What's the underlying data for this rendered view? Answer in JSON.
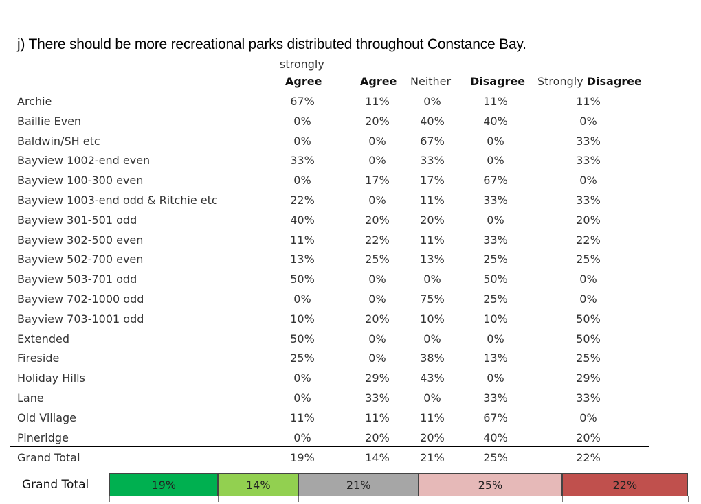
{
  "title": "j) There should be more recreational parks distributed throughout Constance Bay.",
  "headers": {
    "col1_line1": "strongly",
    "col1_line2": "Agree",
    "col2": "Agree",
    "col3": "Neither",
    "col4": "Disagree",
    "col5_prefix": "Strongly",
    "col5_bold": "Disagree"
  },
  "chart_data": {
    "type": "table",
    "columns": [
      "strongly Agree",
      "Agree",
      "Neither",
      "Disagree",
      "Strongly Disagree"
    ],
    "rows": [
      {
        "label": "Archie",
        "values": [
          "67%",
          "11%",
          "0%",
          "11%",
          "11%"
        ]
      },
      {
        "label": "Baillie Even",
        "values": [
          "0%",
          "20%",
          "40%",
          "40%",
          "0%"
        ]
      },
      {
        "label": "Baldwin/SH etc",
        "values": [
          "0%",
          "0%",
          "67%",
          "0%",
          "33%"
        ]
      },
      {
        "label": "Bayview 1002-end even",
        "values": [
          "33%",
          "0%",
          "33%",
          "0%",
          "33%"
        ]
      },
      {
        "label": "Bayview 100-300 even",
        "values": [
          "0%",
          "17%",
          "17%",
          "67%",
          "0%"
        ]
      },
      {
        "label": "Bayview 1003-end odd & Ritchie etc",
        "values": [
          "22%",
          "0%",
          "11%",
          "33%",
          "33%"
        ]
      },
      {
        "label": "Bayview 301-501 odd",
        "values": [
          "40%",
          "20%",
          "20%",
          "0%",
          "20%"
        ]
      },
      {
        "label": "Bayview 302-500 even",
        "values": [
          "11%",
          "22%",
          "11%",
          "33%",
          "22%"
        ]
      },
      {
        "label": "Bayview 502-700 even",
        "values": [
          "13%",
          "25%",
          "13%",
          "25%",
          "25%"
        ]
      },
      {
        "label": "Bayview 503-701 odd",
        "values": [
          "50%",
          "0%",
          "0%",
          "50%",
          "0%"
        ]
      },
      {
        "label": "Bayview 702-1000 odd",
        "values": [
          "0%",
          "0%",
          "75%",
          "25%",
          "0%"
        ]
      },
      {
        "label": "Bayview 703-1001 odd",
        "values": [
          "10%",
          "20%",
          "10%",
          "10%",
          "50%"
        ]
      },
      {
        "label": "Extended",
        "values": [
          "50%",
          "0%",
          "0%",
          "0%",
          "50%"
        ]
      },
      {
        "label": "Fireside",
        "values": [
          "25%",
          "0%",
          "38%",
          "13%",
          "25%"
        ]
      },
      {
        "label": "Holiday Hills",
        "values": [
          "0%",
          "29%",
          "43%",
          "0%",
          "29%"
        ]
      },
      {
        "label": "Lane",
        "values": [
          "0%",
          "33%",
          "0%",
          "33%",
          "33%"
        ]
      },
      {
        "label": "Old Village",
        "values": [
          "11%",
          "11%",
          "11%",
          "67%",
          "0%"
        ]
      },
      {
        "label": "Pineridge",
        "values": [
          "0%",
          "20%",
          "20%",
          "40%",
          "20%"
        ]
      }
    ],
    "total": {
      "label": "Grand Total",
      "values": [
        "19%",
        "14%",
        "21%",
        "25%",
        "22%"
      ]
    },
    "stacked_bar": {
      "type": "bar",
      "label": "Grand Total",
      "segments": [
        {
          "value": 19,
          "text": "19%",
          "color": "#00b050"
        },
        {
          "value": 14,
          "text": "14%",
          "color": "#92d050"
        },
        {
          "value": 21,
          "text": "21%",
          "color": "#a6a6a6"
        },
        {
          "value": 25,
          "text": "25%",
          "color": "#e6b9b8"
        },
        {
          "value": 22,
          "text": "22%",
          "color": "#c0504d"
        }
      ]
    }
  }
}
